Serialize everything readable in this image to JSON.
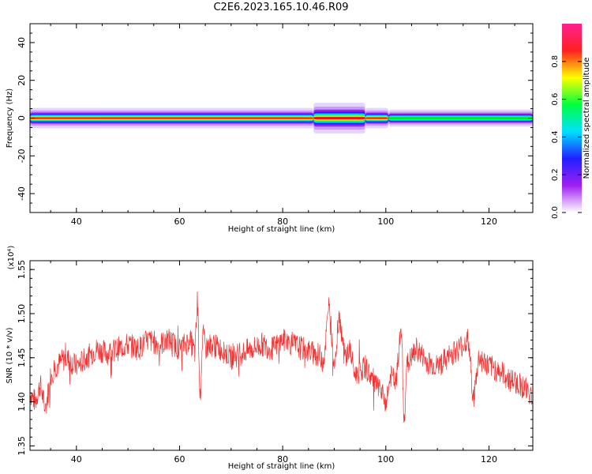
{
  "title": "C2E6.2023.165.10.46.R09",
  "chart_data": [
    {
      "type": "heatmap",
      "xlabel": "Height of straight line (km)",
      "ylabel": "Frequency (Hz)",
      "xlim": [
        31,
        128.5
      ],
      "ylim": [
        -50,
        50
      ],
      "xticks": [
        40,
        60,
        80,
        100,
        120
      ],
      "yticks": [
        -40,
        -20,
        0,
        20,
        40
      ],
      "ytick_labels": [
        "-40",
        "-20",
        "0",
        "20",
        "40"
      ],
      "colorbar": {
        "label": "Normalized spectral amplitude",
        "range": [
          0,
          1
        ],
        "ticks": [
          0.0,
          0.2,
          0.4,
          0.6,
          0.8
        ],
        "tick_labels": [
          "0.0",
          "0.2",
          "0.4",
          "0.6",
          "0.8"
        ],
        "colormap": [
          "#ffffff",
          "#a020f0",
          "#2020ff",
          "#00e0ff",
          "#00ff40",
          "#ffff00",
          "#ff2020",
          "#ff2090"
        ]
      },
      "band": {
        "description_values": "spectral energy concentrated near 0 Hz across all heights",
        "segments": [
          {
            "x": [
              31,
              86
            ],
            "halfwidth_hz": 3,
            "peak": 0.9
          },
          {
            "x": [
              86,
              96
            ],
            "halfwidth_hz": 4.5,
            "peak": 0.85
          },
          {
            "x": [
              96,
              100.5
            ],
            "halfwidth_hz": 3,
            "peak": 0.95
          },
          {
            "x": [
              100.5,
              128.5
            ],
            "halfwidth_hz": 2.5,
            "peak": 0.45
          }
        ]
      }
    },
    {
      "type": "line",
      "xlabel": "Height of straight line (km)",
      "ylabel": "SNR (10 * v/v)",
      "ylabel_multiplier": "(x10⁴)",
      "xlim": [
        31,
        128.5
      ],
      "ylim": [
        1.345,
        1.56
      ],
      "xticks": [
        40,
        60,
        80,
        100,
        120
      ],
      "yticks": [
        1.35,
        1.4,
        1.45,
        1.5,
        1.55
      ],
      "ytick_labels": [
        "1.35",
        "1.40",
        "1.45",
        "1.50",
        "1.55"
      ],
      "color": "#ee3333",
      "series": [
        {
          "x": [
            31,
            32,
            33,
            34,
            35,
            36,
            38,
            40,
            42,
            44,
            46,
            48,
            50,
            52,
            54,
            56,
            58,
            60,
            62,
            63,
            63.5,
            64,
            64.5,
            65,
            66,
            68,
            70,
            72,
            74,
            76,
            78,
            80,
            82,
            84,
            86,
            88,
            89,
            90,
            91,
            92,
            93,
            94,
            96,
            98,
            100,
            101,
            102,
            103,
            103.5,
            104,
            106,
            108,
            110,
            112,
            114,
            116,
            117,
            118,
            120,
            122,
            124,
            126,
            128,
            128.5
          ],
          "y": [
            1.41,
            1.4,
            1.42,
            1.39,
            1.43,
            1.44,
            1.45,
            1.44,
            1.45,
            1.46,
            1.455,
            1.46,
            1.465,
            1.46,
            1.47,
            1.465,
            1.47,
            1.46,
            1.47,
            1.455,
            1.52,
            1.4,
            1.48,
            1.46,
            1.465,
            1.46,
            1.45,
            1.455,
            1.46,
            1.465,
            1.46,
            1.47,
            1.465,
            1.46,
            1.455,
            1.45,
            1.51,
            1.44,
            1.5,
            1.45,
            1.46,
            1.43,
            1.44,
            1.42,
            1.4,
            1.43,
            1.42,
            1.49,
            1.37,
            1.44,
            1.46,
            1.445,
            1.44,
            1.45,
            1.46,
            1.47,
            1.4,
            1.45,
            1.44,
            1.435,
            1.425,
            1.42,
            1.41,
            1.4
          ]
        }
      ]
    }
  ]
}
